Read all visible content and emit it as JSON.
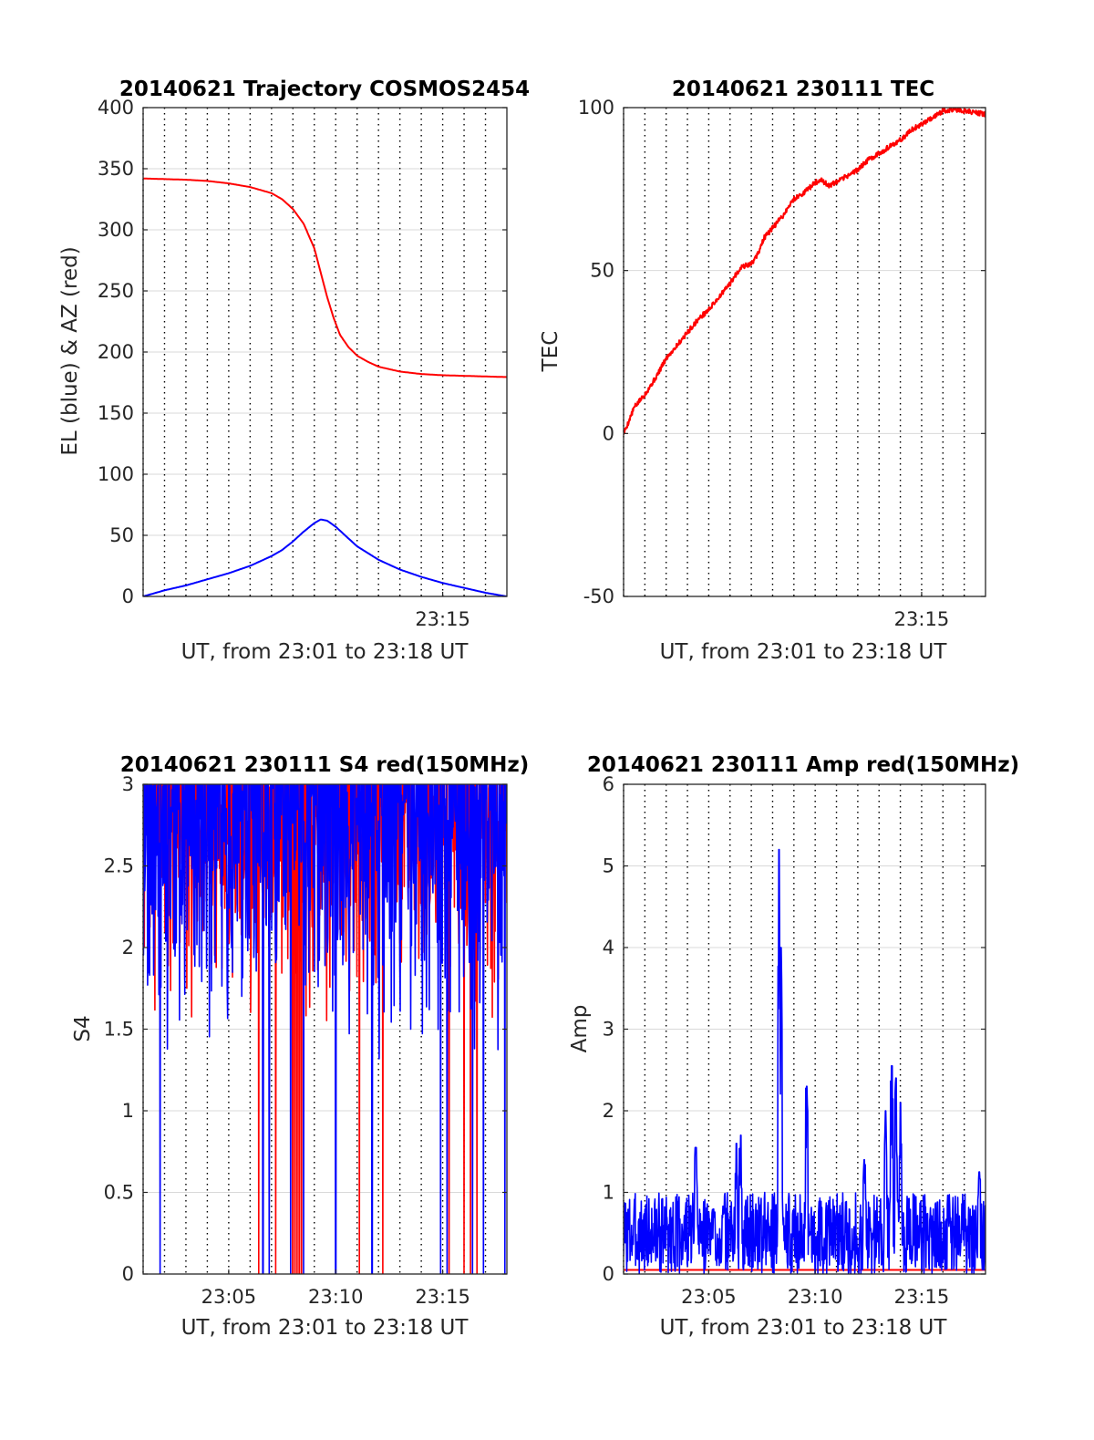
{
  "figure": {
    "background": "#ffffff",
    "grid_color": "#d9d9d9",
    "dotted_vlines_color": "#000000",
    "x_vlines_minutes": [
      1,
      2,
      3,
      4,
      5,
      6,
      7,
      8,
      9,
      10,
      11,
      12,
      13,
      14,
      15,
      16,
      17
    ]
  },
  "chart_data": [
    {
      "id": "trajectory",
      "type": "line",
      "title": "20140621 Trajectory COSMOS2454",
      "xlabel": "UT, from 23:01 to 23:18 UT",
      "ylabel": "EL (blue) & AZ (red)",
      "x_unit": "minutes after 23:00 UT",
      "xlim": [
        1,
        18
      ],
      "ylim": [
        0,
        400
      ],
      "yticks": [
        0,
        50,
        100,
        150,
        200,
        250,
        300,
        350,
        400
      ],
      "ytick_labels": [
        "0",
        "50",
        "100",
        "150",
        "200",
        "250",
        "300",
        "350",
        "400"
      ],
      "xticks": [
        15
      ],
      "xtick_labels": [
        "23:15"
      ],
      "grid": true,
      "series": [
        {
          "color": "#ff0000",
          "kind": "line",
          "x": [
            1,
            3,
            4,
            5,
            6,
            7,
            7.5,
            8,
            8.5,
            9,
            9.3,
            9.6,
            9.9,
            10.2,
            10.6,
            11,
            11.5,
            12,
            13,
            14,
            15,
            16,
            17,
            18
          ],
          "values": [
            342,
            341,
            340,
            338,
            335,
            330,
            325,
            317,
            305,
            285,
            265,
            245,
            228,
            214,
            204,
            197,
            192,
            188,
            184,
            182,
            181,
            180.5,
            180,
            179.5
          ]
        },
        {
          "color": "#0000ff",
          "kind": "line",
          "x": [
            1,
            2,
            3,
            4,
            5,
            6,
            7,
            7.5,
            8,
            8.5,
            9,
            9.3,
            9.6,
            10,
            10.5,
            11,
            12,
            13,
            14,
            15,
            16,
            17,
            18
          ],
          "values": [
            0,
            5,
            9,
            14,
            19,
            25,
            33,
            38,
            45,
            53,
            60,
            63,
            62,
            57,
            49,
            41,
            30,
            22,
            16,
            11,
            7,
            3,
            0
          ]
        }
      ]
    },
    {
      "id": "tec",
      "type": "line",
      "title": "20140621 230111 TEC",
      "xlabel": "UT, from 23:01 to 23:18 UT",
      "ylabel": "TEC",
      "x_unit": "minutes after 23:00 UT",
      "xlim": [
        1,
        18
      ],
      "ylim": [
        -50,
        100
      ],
      "yticks": [
        -50,
        0,
        50,
        100
      ],
      "ytick_labels": [
        "-50",
        "0",
        "50",
        "100"
      ],
      "xticks": [
        15
      ],
      "xtick_labels": [
        "23:15"
      ],
      "grid": true,
      "series": [
        {
          "color": "#ff0000",
          "kind": "noisy-line",
          "noise": 0.8,
          "x": [
            1,
            1.2,
            1.5,
            2,
            2.5,
            3,
            3.5,
            4,
            4.5,
            5,
            5.5,
            6,
            6.5,
            7,
            7.3,
            7.6,
            8,
            8.5,
            9,
            9.5,
            10,
            10.3,
            10.6,
            11,
            11.5,
            12,
            12.5,
            13,
            13.5,
            14,
            14.5,
            15,
            15.5,
            16,
            16.5,
            17,
            17.5,
            18
          ],
          "values": [
            0,
            3,
            8,
            12,
            17,
            23,
            27,
            31,
            35,
            38,
            42,
            46,
            51,
            52,
            55,
            60,
            63,
            67,
            72,
            74,
            77,
            78,
            76,
            77,
            79,
            81,
            84,
            86,
            88,
            90,
            93,
            95,
            97,
            99,
            99.5,
            99,
            98.5,
            98
          ]
        }
      ]
    },
    {
      "id": "s4",
      "type": "line",
      "title": "20140621 230111 S4 red(150MHz)",
      "xlabel": "UT, from 23:01 to 23:18 UT",
      "ylabel": "S4",
      "x_unit": "minutes after 23:00 UT",
      "xlim": [
        1,
        18
      ],
      "ylim": [
        0,
        3
      ],
      "yticks": [
        0,
        0.5,
        1,
        1.5,
        2,
        2.5,
        3
      ],
      "ytick_labels": [
        "0",
        "0.5",
        "1",
        "1.5",
        "2",
        "2.5",
        "3"
      ],
      "xticks": [
        5,
        10,
        15
      ],
      "xtick_labels": [
        "23:05",
        "23:10",
        "23:15"
      ],
      "grid": true,
      "series": [
        {
          "color": "#ff0000",
          "kind": "noise-band",
          "low": 1.5,
          "high": 3.0,
          "seed": 7,
          "drops_to_zero_at": [
            6.4,
            7.2,
            8.0,
            8.1,
            8.2,
            8.3,
            8.4,
            11.1,
            12.2,
            15.3,
            16.0,
            16.3,
            16.6
          ]
        },
        {
          "color": "#0000ff",
          "kind": "noise-band",
          "low": 1.3,
          "high": 3.0,
          "seed": 11,
          "drops_to_zero_at": [
            1.8,
            6.6,
            6.9,
            7.9,
            8.5,
            10.0,
            11.7,
            14.9,
            15.2,
            16.4,
            16.9,
            17.9
          ]
        }
      ]
    },
    {
      "id": "amp",
      "type": "line",
      "title": "20140621 230111 Amp red(150MHz)",
      "xlabel": "UT, from 23:01 to 23:18 UT",
      "ylabel": "Amp",
      "x_unit": "minutes after 23:00 UT",
      "xlim": [
        1,
        18
      ],
      "ylim": [
        0,
        6
      ],
      "yticks": [
        0,
        1,
        2,
        3,
        4,
        5,
        6
      ],
      "ytick_labels": [
        "0",
        "1",
        "2",
        "3",
        "4",
        "5",
        "6"
      ],
      "xticks": [
        5,
        10,
        15
      ],
      "xtick_labels": [
        "23:05",
        "23:10",
        "23:15"
      ],
      "grid": true,
      "series": [
        {
          "color": "#ff0000",
          "kind": "baseline",
          "values": [
            0.05
          ]
        },
        {
          "color": "#0000ff",
          "kind": "noise-band",
          "low": 0.0,
          "high": 1.0,
          "seed": 3,
          "peaks": [
            [
              4.4,
              1.55
            ],
            [
              6.3,
              1.6
            ],
            [
              6.5,
              1.7
            ],
            [
              8.3,
              5.2
            ],
            [
              8.4,
              4.0
            ],
            [
              9.6,
              2.3
            ],
            [
              12.3,
              1.4
            ],
            [
              13.3,
              2.0
            ],
            [
              13.6,
              2.55
            ],
            [
              13.8,
              2.4
            ],
            [
              14.0,
              2.1
            ],
            [
              17.7,
              1.25
            ]
          ]
        }
      ]
    }
  ]
}
